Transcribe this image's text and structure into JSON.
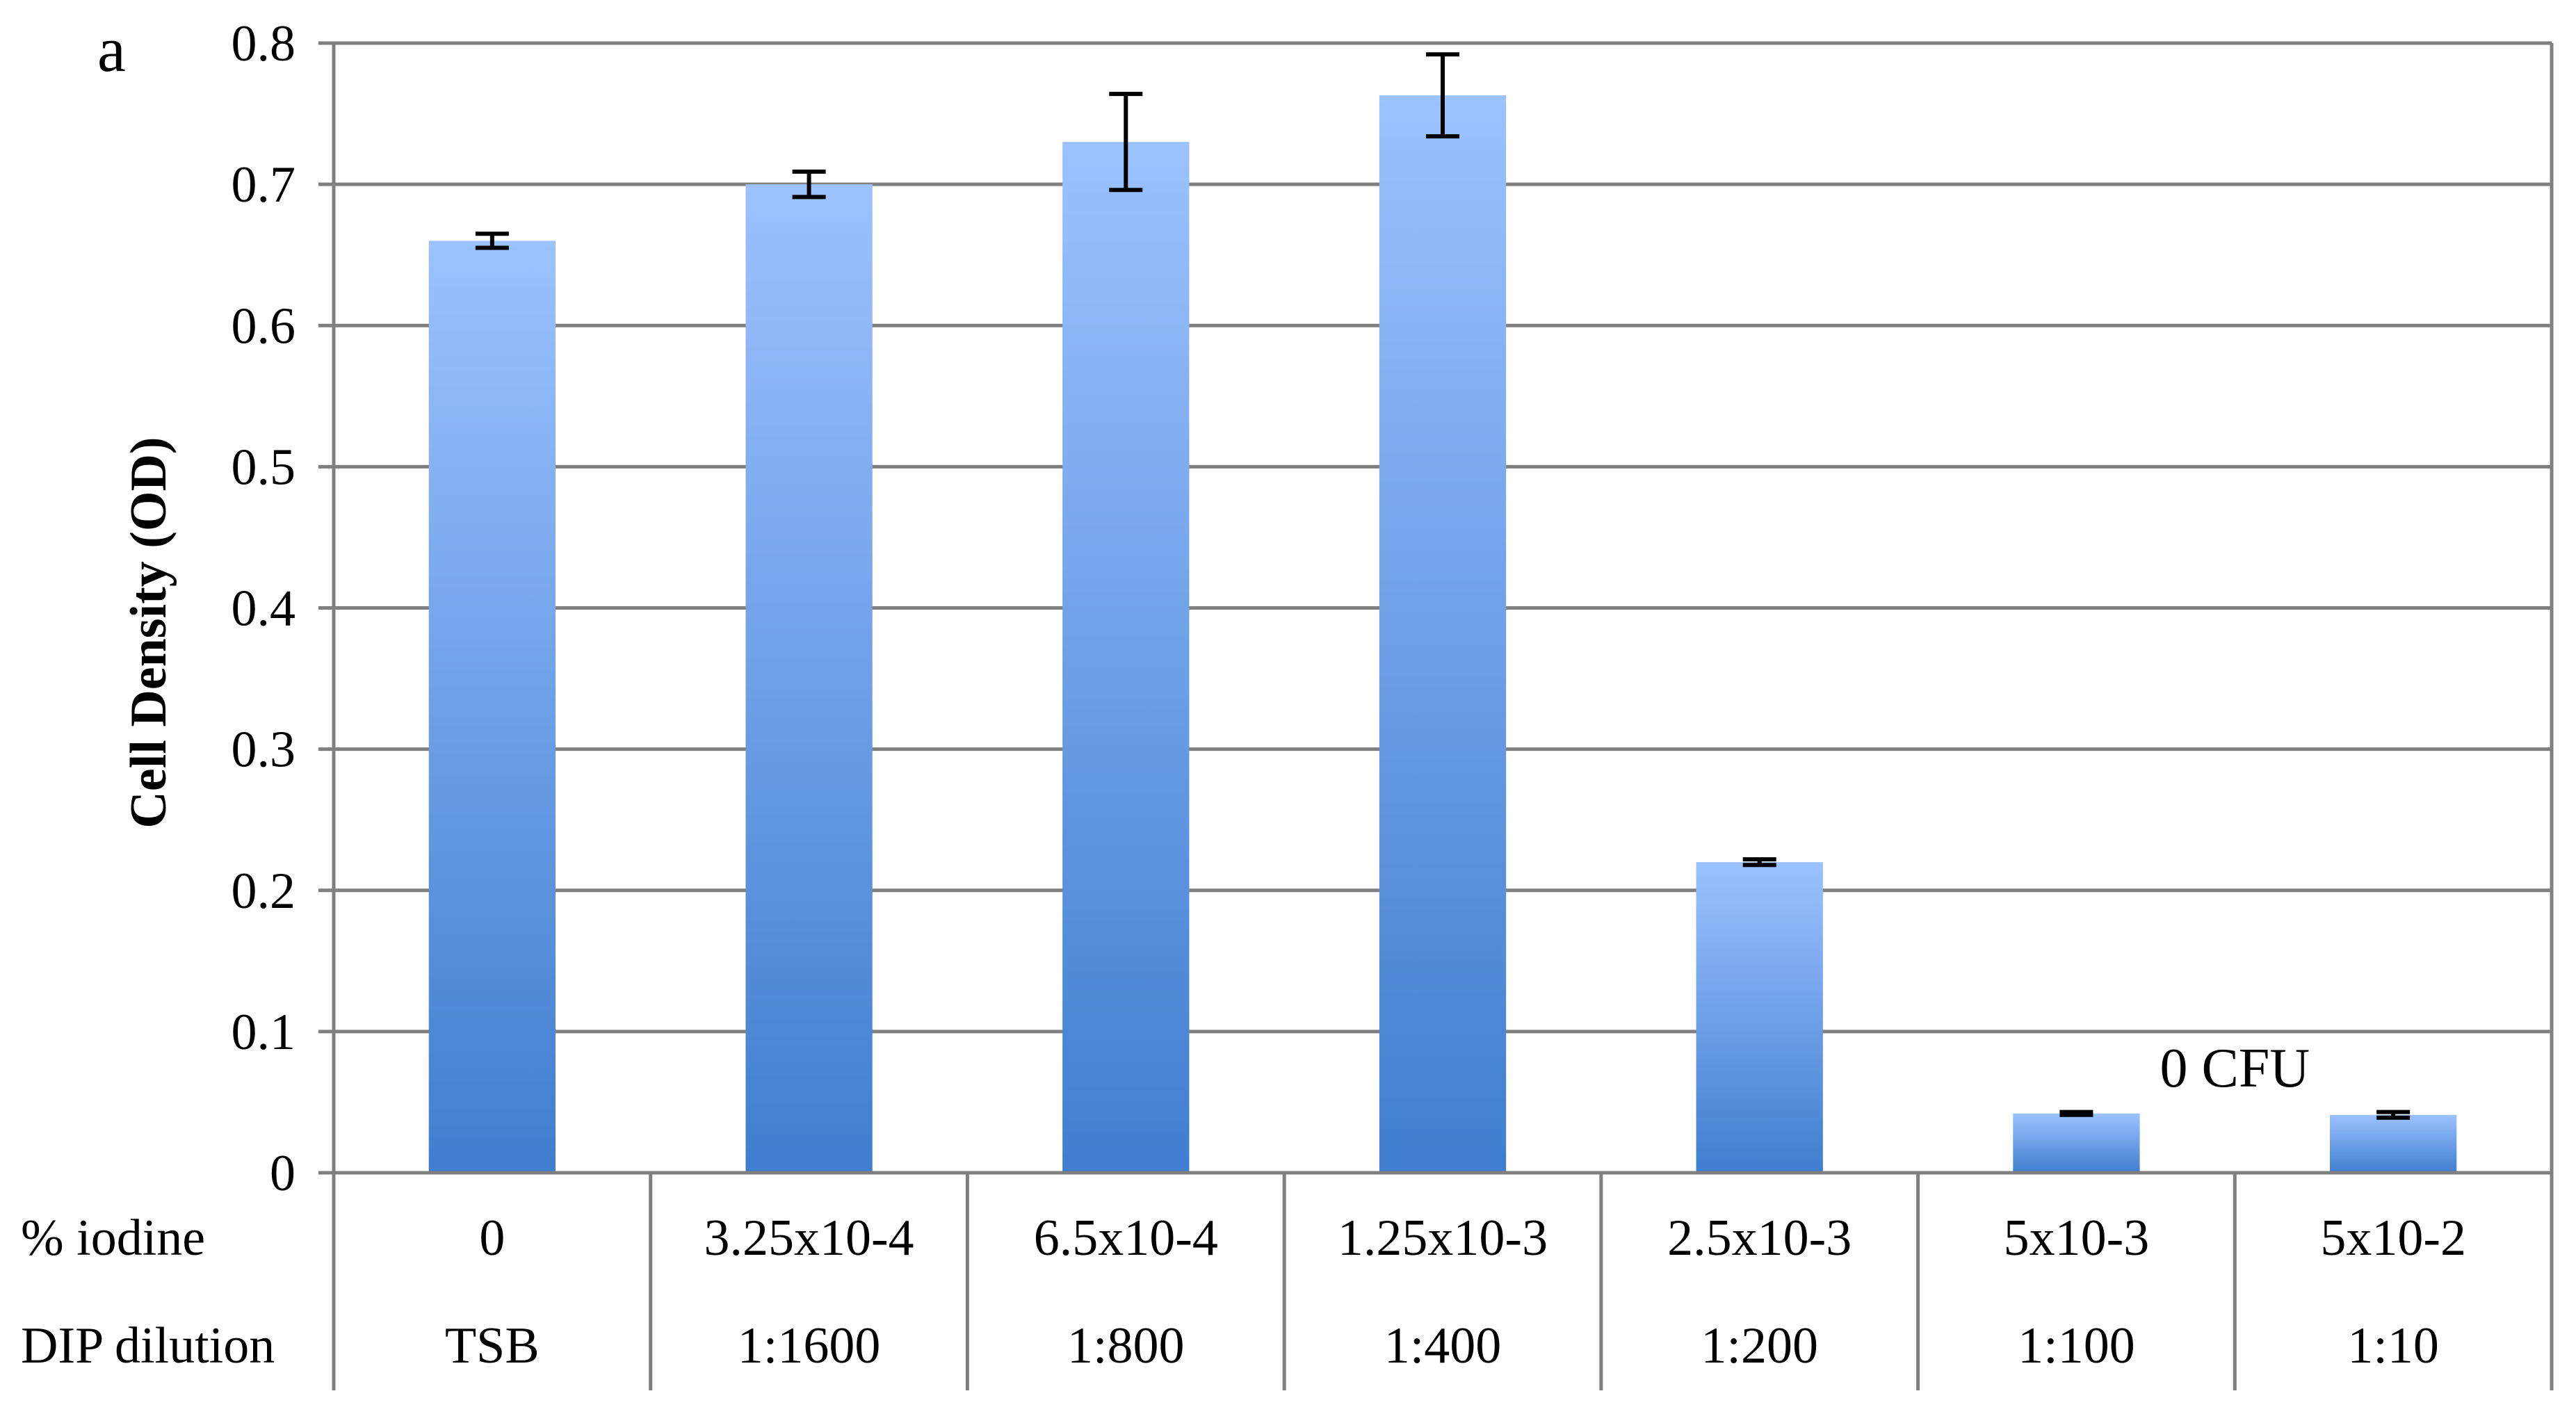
{
  "chart_data": {
    "type": "bar",
    "panel_label": "a",
    "ylabel": "Cell Density (OD)",
    "ylim": [
      0,
      0.8
    ],
    "y_ticks": [
      "0",
      "0.1",
      "0.2",
      "0.3",
      "0.4",
      "0.5",
      "0.6",
      "0.7",
      "0.8"
    ],
    "y_tick_values": [
      0,
      0.1,
      0.2,
      0.3,
      0.4,
      0.5,
      0.6,
      0.7,
      0.8
    ],
    "grid": true,
    "category_rows": [
      {
        "header": "% iodine",
        "labels": [
          "0",
          "3.25x10-4",
          "6.5x10-4",
          "1.25x10-3",
          "2.5x10-3",
          "5x10-3",
          "5x10-2"
        ]
      },
      {
        "header": "DIP dilution",
        "labels": [
          "TSB",
          "1:1600",
          "1:800",
          "1:400",
          "1:200",
          "1:100",
          "1:10"
        ]
      }
    ],
    "series": [
      {
        "values": [
          0.66,
          0.7,
          0.73,
          0.763,
          0.22,
          0.042,
          0.041
        ],
        "error": [
          0.005,
          0.009,
          0.034,
          0.029,
          0.002,
          0.001,
          0.002
        ]
      }
    ],
    "annotations": [
      {
        "text": "0 CFU",
        "category_index": 5
      }
    ],
    "colors": {
      "bar_top": "#9CC2FF",
      "bar_bottom": "#3F7ECF",
      "grid": "#7F7F7F",
      "axis": "#7F7F7F",
      "error_bar": "#000000"
    }
  }
}
